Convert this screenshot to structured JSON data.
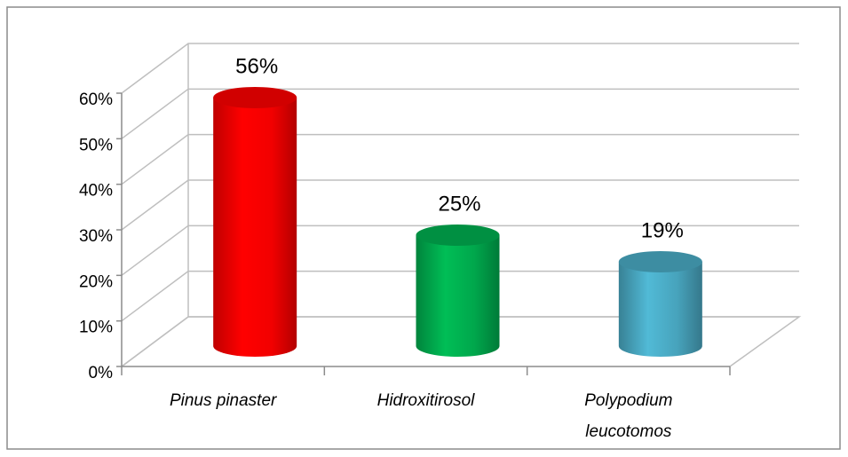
{
  "chart_data": {
    "type": "bar",
    "categories": [
      "Pinus pinaster",
      "Hidroxitirosol",
      "Polypodium leucotomos"
    ],
    "values": [
      56,
      25,
      19
    ],
    "value_labels": [
      "56%",
      "25%",
      "19%"
    ],
    "colors": [
      "#ff0000",
      "#00b050",
      "#4bacc6"
    ],
    "ylim": [
      0,
      60
    ],
    "yticks": [
      {
        "value": 0,
        "label": "0%"
      },
      {
        "value": 10,
        "label": "10%"
      },
      {
        "value": 20,
        "label": "20%"
      },
      {
        "value": 30,
        "label": "30%"
      },
      {
        "value": 40,
        "label": "40%"
      },
      {
        "value": 50,
        "label": "50%"
      },
      {
        "value": 60,
        "label": "60%"
      }
    ],
    "grid": true
  }
}
